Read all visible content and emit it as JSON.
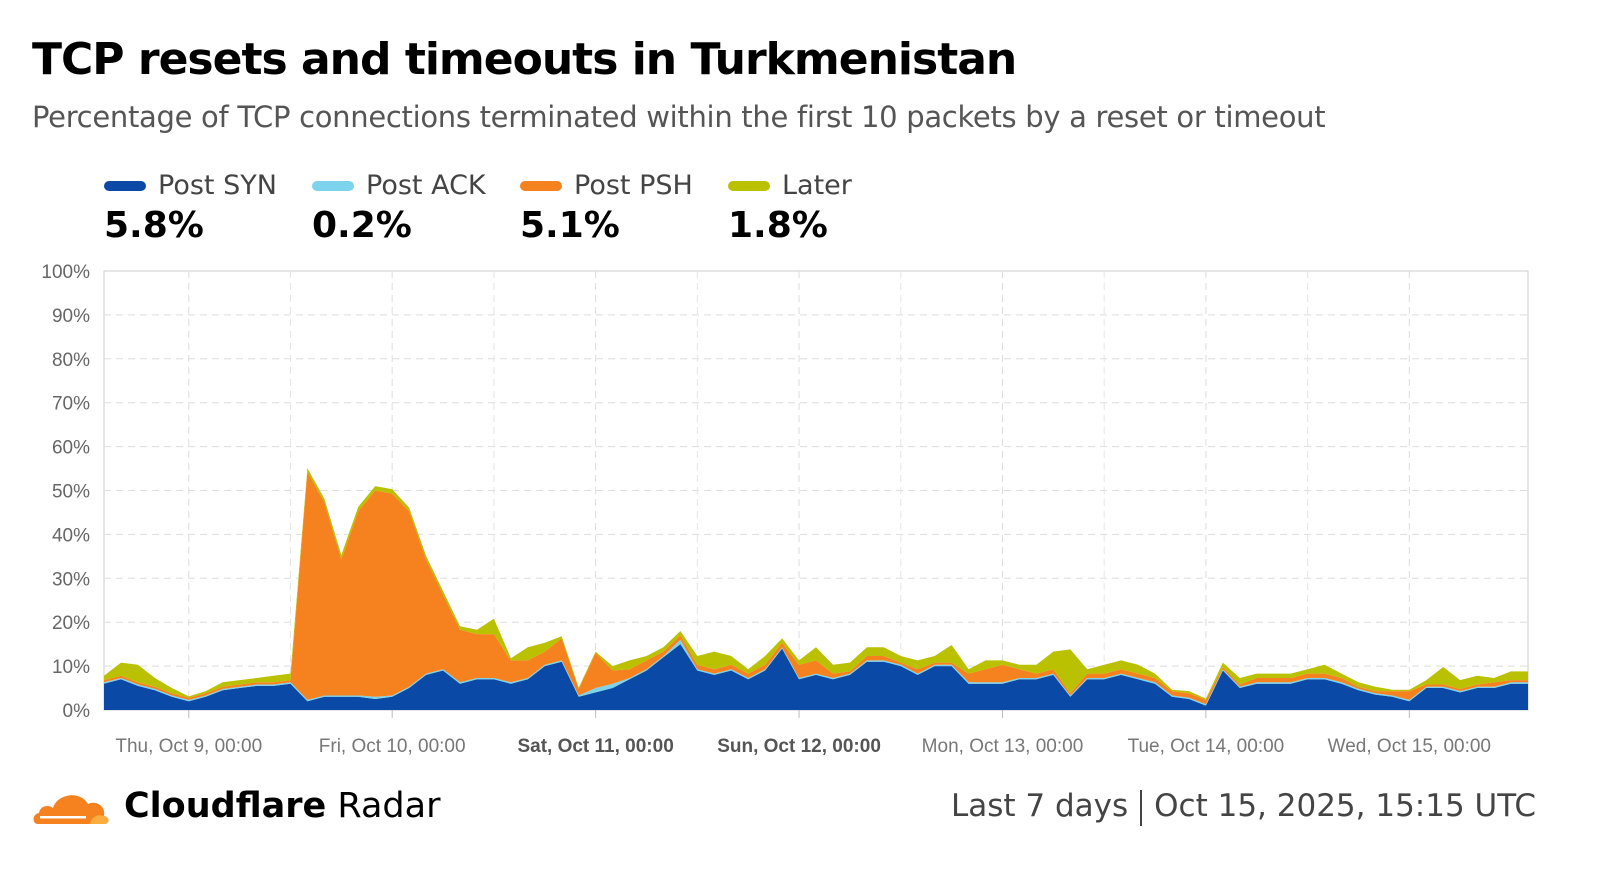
{
  "header": {
    "title": "TCP resets and timeouts in Turkmenistan",
    "subtitle": "Percentage of TCP connections terminated within the first 10 packets by a reset or timeout"
  },
  "legend": [
    {
      "label": "Post SYN",
      "value": "5.8%",
      "color": "#0a4aa6"
    },
    {
      "label": "Post ACK",
      "value": "0.2%",
      "color": "#7dd3ec"
    },
    {
      "label": "Post PSH",
      "value": "5.1%",
      "color": "#f6821f"
    },
    {
      "label": "Later",
      "value": "1.8%",
      "color": "#b9c100"
    }
  ],
  "footer": {
    "brand_bold": "Cloudflare",
    "brand_light": "Radar",
    "range": "Last 7 days",
    "timestamp": "Oct 15, 2025, 15:15 UTC"
  },
  "chart_data": {
    "type": "area",
    "stacked": true,
    "grid": true,
    "legend_position": "top-left",
    "ylim": [
      0,
      100
    ],
    "yticks": [
      "0%",
      "10%",
      "20%",
      "30%",
      "40%",
      "50%",
      "60%",
      "70%",
      "80%",
      "90%",
      "100%"
    ],
    "xticks": [
      {
        "label": "Thu, Oct 9, 00:00",
        "date": "2025-10-09T00:00",
        "bold": false
      },
      {
        "label": "Fri, Oct 10, 00:00",
        "date": "2025-10-10T00:00",
        "bold": false
      },
      {
        "label": "Sat, Oct 11, 00:00",
        "date": "2025-10-11T00:00",
        "bold": true
      },
      {
        "label": "Sun, Oct 12, 00:00",
        "date": "2025-10-12T00:00",
        "bold": true
      },
      {
        "label": "Mon, Oct 13, 00:00",
        "date": "2025-10-13T00:00",
        "bold": false
      },
      {
        "label": "Tue, Oct 14, 00:00",
        "date": "2025-10-14T00:00",
        "bold": false
      },
      {
        "label": "Wed, Oct 15, 00:00",
        "date": "2025-10-15T00:00",
        "bold": false
      }
    ],
    "x": [
      "2025-10-08T14:00",
      "2025-10-08T16:00",
      "2025-10-08T18:00",
      "2025-10-08T20:00",
      "2025-10-08T22:00",
      "2025-10-09T00:00",
      "2025-10-09T02:00",
      "2025-10-09T04:00",
      "2025-10-09T06:00",
      "2025-10-09T08:00",
      "2025-10-09T10:00",
      "2025-10-09T12:00",
      "2025-10-09T14:00",
      "2025-10-09T16:00",
      "2025-10-09T18:00",
      "2025-10-09T20:00",
      "2025-10-09T22:00",
      "2025-10-10T00:00",
      "2025-10-10T02:00",
      "2025-10-10T04:00",
      "2025-10-10T06:00",
      "2025-10-10T08:00",
      "2025-10-10T10:00",
      "2025-10-10T12:00",
      "2025-10-10T14:00",
      "2025-10-10T16:00",
      "2025-10-10T18:00",
      "2025-10-10T20:00",
      "2025-10-10T22:00",
      "2025-10-11T00:00",
      "2025-10-11T02:00",
      "2025-10-11T04:00",
      "2025-10-11T06:00",
      "2025-10-11T08:00",
      "2025-10-11T10:00",
      "2025-10-11T12:00",
      "2025-10-11T14:00",
      "2025-10-11T16:00",
      "2025-10-11T18:00",
      "2025-10-11T20:00",
      "2025-10-11T22:00",
      "2025-10-12T00:00",
      "2025-10-12T02:00",
      "2025-10-12T04:00",
      "2025-10-12T06:00",
      "2025-10-12T08:00",
      "2025-10-12T10:00",
      "2025-10-12T12:00",
      "2025-10-12T14:00",
      "2025-10-12T16:00",
      "2025-10-12T18:00",
      "2025-10-12T20:00",
      "2025-10-12T22:00",
      "2025-10-13T00:00",
      "2025-10-13T02:00",
      "2025-10-13T04:00",
      "2025-10-13T06:00",
      "2025-10-13T08:00",
      "2025-10-13T10:00",
      "2025-10-13T12:00",
      "2025-10-13T14:00",
      "2025-10-13T16:00",
      "2025-10-13T18:00",
      "2025-10-13T20:00",
      "2025-10-13T22:00",
      "2025-10-14T00:00",
      "2025-10-14T02:00",
      "2025-10-14T04:00",
      "2025-10-14T06:00",
      "2025-10-14T08:00",
      "2025-10-14T10:00",
      "2025-10-14T12:00",
      "2025-10-14T14:00",
      "2025-10-14T16:00",
      "2025-10-14T18:00",
      "2025-10-14T20:00",
      "2025-10-14T22:00",
      "2025-10-15T00:00",
      "2025-10-15T02:00",
      "2025-10-15T04:00",
      "2025-10-15T06:00",
      "2025-10-15T08:00",
      "2025-10-15T10:00",
      "2025-10-15T12:00",
      "2025-10-15T14:00"
    ],
    "series": [
      {
        "name": "Post SYN",
        "color": "#0a4aa6",
        "values": [
          6,
          7,
          5.5,
          4.5,
          3,
          2,
          3,
          4.5,
          5,
          5.5,
          5.5,
          6,
          2,
          3,
          3,
          3,
          2.5,
          3,
          5,
          8,
          9,
          6,
          7,
          7,
          6,
          7,
          10,
          11,
          3,
          4,
          5,
          7,
          9,
          12,
          15,
          9,
          8,
          9,
          7,
          9,
          14,
          7,
          8,
          7,
          8,
          11,
          11,
          10,
          8,
          10,
          10,
          6,
          6,
          6,
          7,
          7,
          8,
          3,
          7,
          7,
          8,
          7,
          6,
          3,
          2.5,
          1,
          9,
          5,
          6,
          6,
          6,
          7,
          7,
          6,
          4.5,
          3.5,
          3,
          2,
          5,
          5,
          4,
          5,
          5,
          6,
          6
        ]
      },
      {
        "name": "Post ACK",
        "color": "#7dd3ec",
        "values": [
          0.3,
          0.3,
          0.3,
          0.3,
          0.3,
          0.3,
          0.3,
          0.3,
          0.3,
          0.3,
          0.3,
          0.3,
          0.3,
          0.3,
          0.3,
          0.3,
          0.5,
          0.3,
          0.3,
          0.3,
          0.3,
          0.3,
          0.3,
          0.3,
          0.3,
          0.3,
          0.3,
          0.3,
          0.3,
          1,
          1,
          0.3,
          0.3,
          0.3,
          1,
          0.3,
          0.3,
          0.3,
          0.3,
          0.3,
          0.3,
          0.3,
          0.3,
          0.3,
          0.3,
          0.3,
          0.3,
          0.3,
          0.3,
          0.3,
          0.3,
          0.3,
          0.3,
          0.3,
          0.3,
          0.3,
          0.3,
          0.3,
          0.3,
          0.3,
          0.3,
          0.3,
          0.3,
          0.3,
          0.3,
          0.3,
          0.3,
          0.3,
          0.3,
          0.3,
          0.3,
          0.3,
          0.3,
          0.3,
          0.3,
          0.3,
          0.3,
          0.3,
          0.3,
          0.3,
          0.3,
          0.3,
          0.3,
          0.3,
          0.3
        ]
      },
      {
        "name": "Post PSH",
        "color": "#f6821f",
        "values": [
          0.5,
          0.5,
          0.5,
          0.5,
          0.5,
          0.5,
          0.5,
          0.5,
          0.5,
          0.5,
          0.5,
          0.5,
          52,
          44,
          31,
          42,
          47,
          46,
          40,
          26,
          17,
          12,
          10,
          10,
          5,
          4,
          3,
          5,
          1.5,
          8,
          3,
          2,
          2,
          1,
          1,
          1,
          1,
          1,
          1,
          1,
          1,
          3,
          3,
          1,
          0.5,
          1,
          1,
          0.5,
          1,
          0.5,
          0.5,
          2,
          3,
          4,
          2,
          1,
          1,
          0.5,
          1,
          1,
          1,
          1,
          1,
          1,
          1,
          1,
          0.5,
          0.5,
          1,
          1,
          1,
          1,
          1,
          1,
          0.5,
          0.5,
          1,
          2,
          0.5,
          0.5,
          0.5,
          0.5,
          1,
          0.5,
          0.5
        ]
      },
      {
        "name": "Later",
        "color": "#b9c100",
        "values": [
          1,
          3,
          4,
          2,
          1.2,
          0.3,
          0.5,
          1,
          1,
          1,
          1.5,
          1.5,
          0.8,
          0.8,
          1,
          1,
          1,
          1,
          0.8,
          0.8,
          0.8,
          0.8,
          1,
          3.5,
          0.5,
          3,
          2,
          0.5,
          0.3,
          0.3,
          1,
          2,
          1,
          1,
          1,
          2,
          4,
          2,
          1,
          2,
          1,
          1,
          3,
          2,
          2,
          2,
          2,
          1.5,
          2,
          1.5,
          4,
          1,
          2,
          1,
          1,
          2,
          4,
          10,
          1,
          2,
          2,
          2,
          1,
          0.3,
          0.5,
          0.3,
          1,
          1.5,
          1,
          1,
          1,
          1,
          2,
          1,
          1,
          1,
          0.3,
          0.3,
          1,
          4,
          2,
          2,
          1,
          2,
          2
        ]
      }
    ]
  }
}
